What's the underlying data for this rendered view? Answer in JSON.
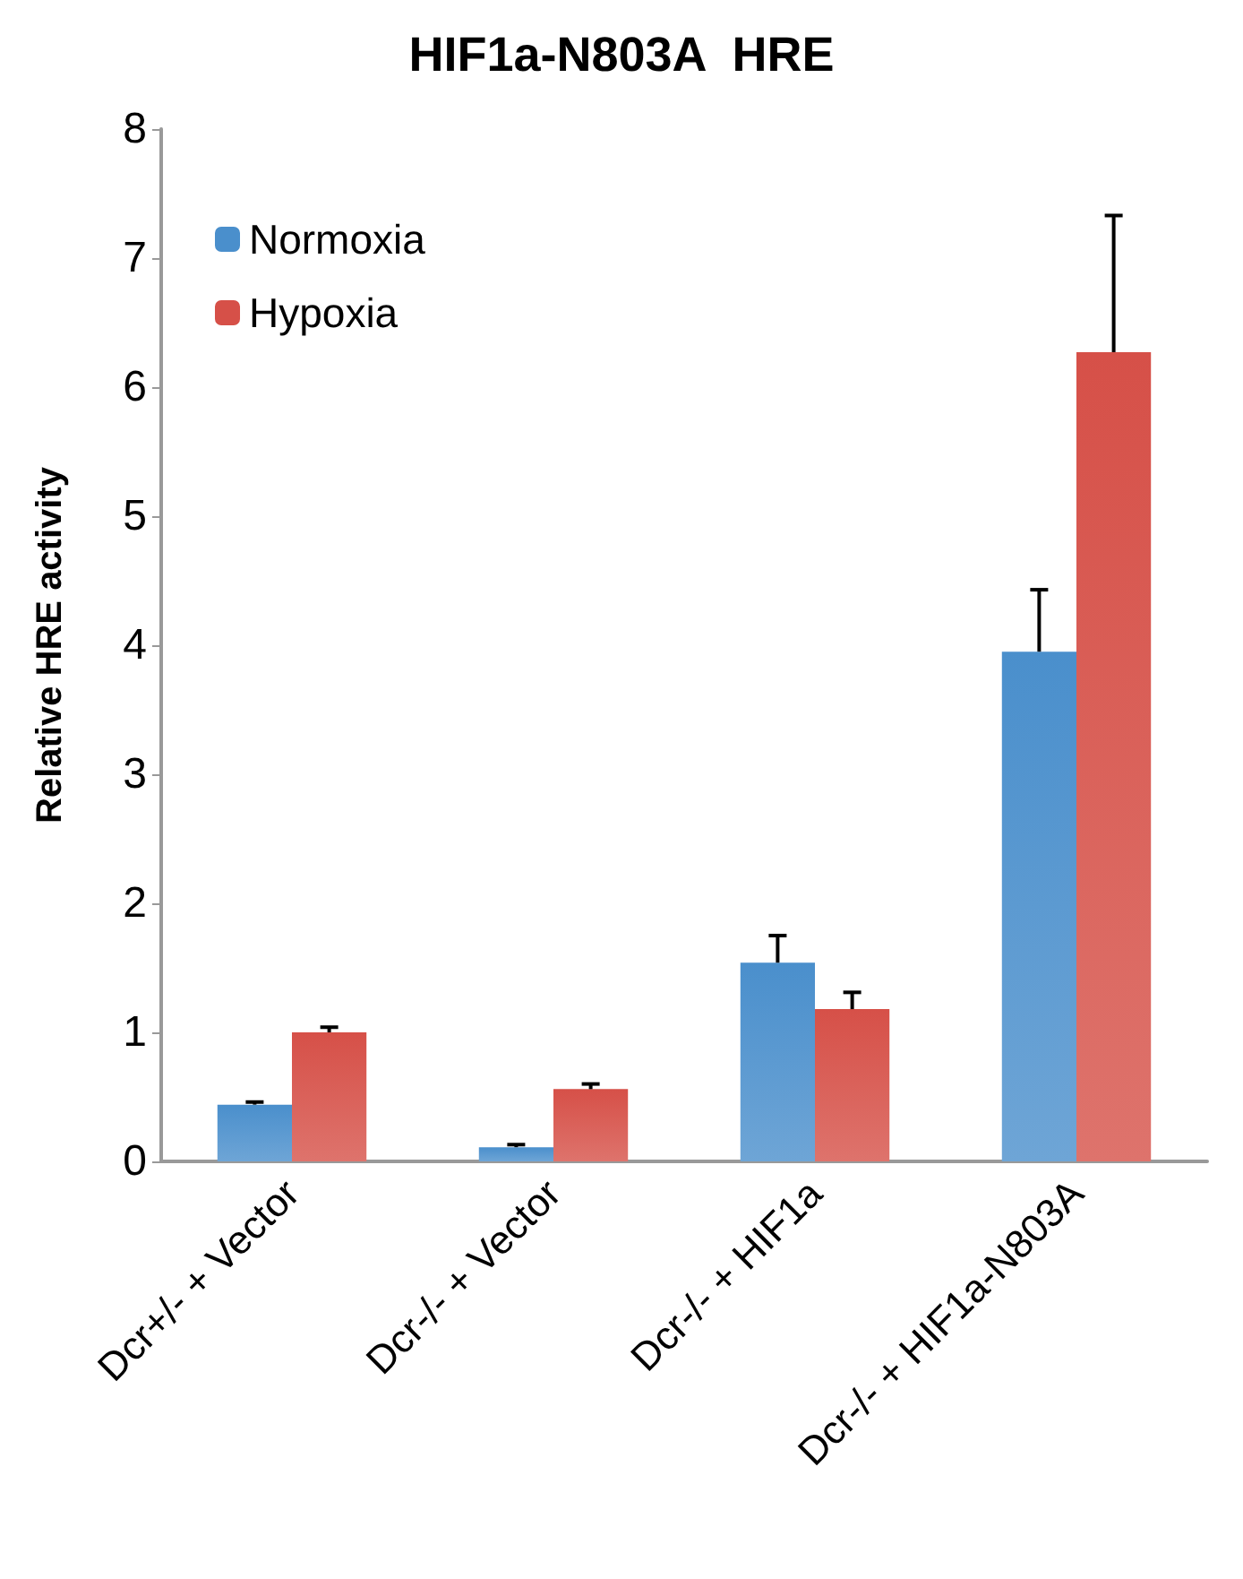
{
  "chart_data": {
    "type": "bar",
    "title": "HIF1a-N803A  HRE",
    "ylabel": "Relative HRE activity",
    "categories": [
      "Dcr+/- + Vector",
      "Dcr-/- + Vector",
      "Dcr-/- + HIF1a",
      "Dcr-/- + HIF1a-N803A"
    ],
    "series": [
      {
        "name": "Normoxia",
        "color": "#4a8fcc",
        "values": [
          0.44,
          0.11,
          1.54,
          3.95
        ],
        "errors": [
          [
            0.44,
            0.46
          ],
          [
            0.11,
            0.13
          ],
          [
            1.54,
            1.75
          ],
          [
            3.95,
            4.43
          ]
        ]
      },
      {
        "name": "Hypoxia",
        "color": "#d65048",
        "values": [
          1.0,
          0.56,
          1.18,
          6.27
        ],
        "errors": [
          [
            1.0,
            1.04
          ],
          [
            0.56,
            0.6
          ],
          [
            1.18,
            1.31
          ],
          [
            6.27,
            7.33
          ]
        ]
      }
    ],
    "ylim": [
      0,
      8
    ],
    "yticks": [
      0,
      1,
      2,
      3,
      4,
      5,
      6,
      7,
      8
    ],
    "grid": false,
    "legend": "top left"
  }
}
